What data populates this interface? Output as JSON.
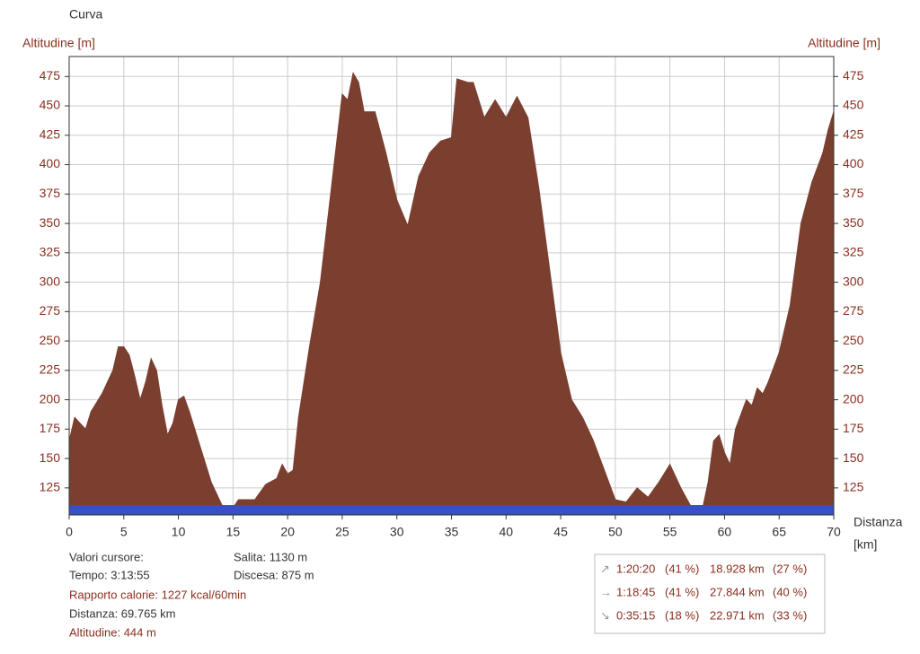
{
  "chart_data": {
    "type": "area",
    "title": "Curva",
    "ylabel": "Altitudine [m]",
    "xlabel": "Distanza",
    "xunit": "[km]",
    "color": "#7b3f30",
    "grid": true,
    "x": [
      0,
      0.5,
      1,
      1.5,
      2,
      3,
      4,
      4.5,
      5,
      5.5,
      6,
      6.5,
      7,
      7.5,
      8,
      8.5,
      9,
      9.5,
      10,
      10.5,
      11,
      12,
      13,
      14,
      15,
      15.5,
      17,
      18,
      19,
      19.5,
      20,
      20.5,
      21,
      22,
      23,
      24,
      25,
      25.5,
      26,
      26.5,
      27,
      28,
      29,
      30,
      31,
      32,
      33,
      34,
      35,
      35.5,
      36.5,
      37,
      38,
      39,
      40,
      41,
      42,
      43,
      44,
      45,
      46,
      47,
      48,
      49,
      50,
      51,
      52,
      53,
      54,
      55,
      56,
      57,
      58,
      58.5,
      59,
      59.5,
      60,
      60.5,
      61,
      62,
      62.5,
      63,
      63.5,
      64,
      65,
      66,
      67,
      68,
      69,
      69.5,
      70
    ],
    "values": [
      165,
      185,
      180,
      175,
      190,
      205,
      225,
      245,
      245,
      238,
      220,
      200,
      215,
      235,
      225,
      195,
      170,
      180,
      200,
      203,
      190,
      160,
      130,
      110,
      108,
      115,
      115,
      128,
      133,
      145,
      137,
      140,
      185,
      245,
      300,
      380,
      460,
      455,
      478,
      470,
      445,
      445,
      410,
      370,
      348,
      390,
      410,
      420,
      423,
      473,
      470,
      470,
      440,
      455,
      440,
      458,
      440,
      380,
      310,
      240,
      200,
      185,
      165,
      140,
      115,
      113,
      125,
      117,
      130,
      145,
      125,
      108,
      108,
      130,
      165,
      170,
      155,
      145,
      175,
      200,
      195,
      210,
      205,
      215,
      240,
      280,
      350,
      385,
      410,
      430,
      445
    ],
    "xlim": [
      0,
      70
    ],
    "xticks": [
      0,
      5,
      10,
      15,
      20,
      25,
      30,
      35,
      40,
      45,
      50,
      55,
      60,
      65,
      70
    ],
    "ylim": [
      102,
      492
    ],
    "yticks": [
      125,
      150,
      175,
      200,
      225,
      250,
      275,
      300,
      325,
      350,
      375,
      400,
      425,
      450,
      475
    ]
  },
  "info": {
    "header": "Valori cursore:",
    "time": "Tempo: 3:13:55",
    "calories": "Rapporto calorie: 1227 kcal/60min",
    "distance": "Distanza: 69.765 km",
    "altitude": "Altitudine: 444 m",
    "ascent": "Salita: 1130 m",
    "descent": "Discesa: 875 m"
  },
  "stats": {
    "rows": [
      [
        "1:20:20",
        "(41 %)",
        "18.928 km",
        "(27 %)"
      ],
      [
        "1:18:45",
        "(41 %)",
        "27.844 km",
        "(40 %)"
      ],
      [
        "0:35:15",
        "(18 %)",
        "22.971 km",
        "(33 %)"
      ]
    ]
  }
}
